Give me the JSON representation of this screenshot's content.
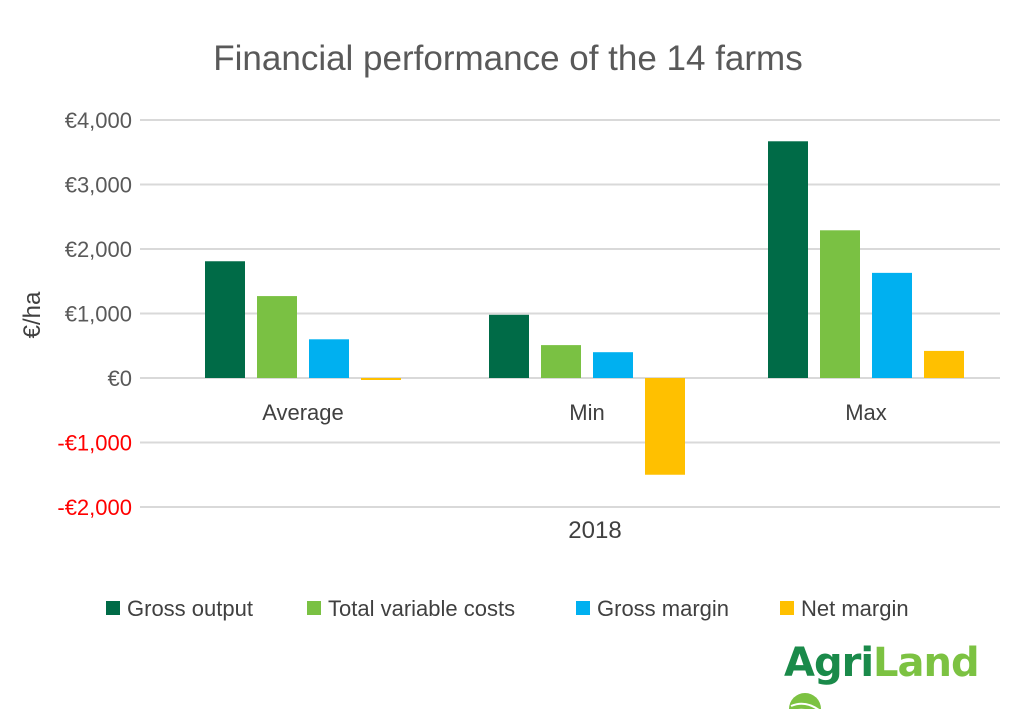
{
  "chart_data": {
    "type": "bar",
    "title": "Financial performance of the 14 farms",
    "xlabel": "2018",
    "ylabel": "€/ha",
    "ylim": [
      -2000,
      4000
    ],
    "yticks": [
      {
        "value": 4000,
        "label": "€4,000"
      },
      {
        "value": 3000,
        "label": "€3,000"
      },
      {
        "value": 2000,
        "label": "€2,000"
      },
      {
        "value": 1000,
        "label": "€1,000"
      },
      {
        "value": 0,
        "label": "€0"
      },
      {
        "value": -1000,
        "label": "-€1,000"
      },
      {
        "value": -2000,
        "label": "-€2,000"
      }
    ],
    "categories": [
      "Average",
      "Min",
      "Max"
    ],
    "series": [
      {
        "name": "Gross output",
        "color": "#006B47",
        "values": [
          1810,
          980,
          3670
        ]
      },
      {
        "name": "Total variable costs",
        "color": "#7AC143",
        "values": [
          1270,
          510,
          2290
        ]
      },
      {
        "name": "Gross margin",
        "color": "#00B0F0",
        "values": [
          600,
          400,
          1630
        ]
      },
      {
        "name": "Net margin",
        "color": "#FFC000",
        "values": [
          -30,
          -1500,
          420
        ]
      }
    ],
    "negative_tick_color": "#FF0000",
    "grid": true,
    "legend": "bottom"
  },
  "logo": {
    "part1": "Agri",
    "part2": "Land"
  }
}
